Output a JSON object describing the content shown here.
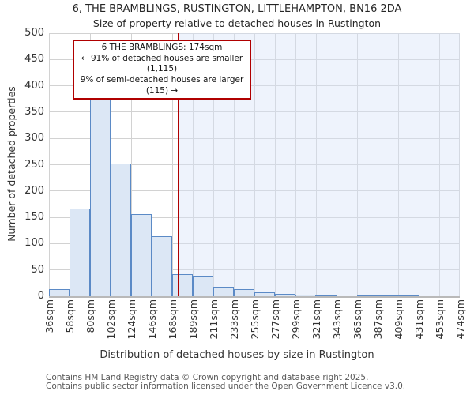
{
  "title": "6, THE BRAMBLINGS, RUSTINGTON, LITTLEHAMPTON, BN16 2DA",
  "subtitle": "Size of property relative to detached houses in Rustington",
  "annotation": {
    "line1": "6 THE BRAMBLINGS: 174sqm",
    "line2": "← 91% of detached houses are smaller (1,115)",
    "line3": "9% of semi-detached houses are larger (115) →"
  },
  "footer": {
    "line1": "Contains HM Land Registry data © Crown copyright and database right 2025.",
    "line2": "Contains public sector information licensed under the Open Government Licence v3.0."
  },
  "colors": {
    "bar_fill": "#dce7f5",
    "bar_border": "#5b8ac6",
    "marker_line": "#b00000",
    "shade": "rgba(214,226,248,0.42)",
    "gridline": "#d2d2d2",
    "annotation_border": "#b00000"
  },
  "chart_data": {
    "type": "bar",
    "title": "6, THE BRAMBLINGS, RUSTINGTON, LITTLEHAMPTON, BN16 2DA",
    "subtitle": "Size of property relative to detached houses in Rustington",
    "xlabel": "Distribution of detached houses by size in Rustington",
    "ylabel": "Number of detached properties",
    "bin_edges_sqm": [
      36,
      58,
      80,
      102,
      124,
      146,
      168,
      189,
      211,
      233,
      255,
      277,
      299,
      321,
      343,
      365,
      387,
      409,
      431,
      453,
      474
    ],
    "x_tick_labels": [
      "36sqm",
      "58sqm",
      "80sqm",
      "102sqm",
      "124sqm",
      "146sqm",
      "168sqm",
      "189sqm",
      "211sqm",
      "233sqm",
      "255sqm",
      "277sqm",
      "299sqm",
      "321sqm",
      "343sqm",
      "365sqm",
      "387sqm",
      "409sqm",
      "431sqm",
      "453sqm",
      "474sqm"
    ],
    "values": [
      13,
      167,
      395,
      252,
      156,
      114,
      42,
      37,
      18,
      13,
      8,
      4,
      3,
      2,
      0,
      2,
      2,
      2,
      0,
      0
    ],
    "yticks": [
      0,
      50,
      100,
      150,
      200,
      250,
      300,
      350,
      400,
      450,
      500
    ],
    "ylim": [
      0,
      500
    ],
    "xlim_sqm": [
      36,
      474
    ],
    "marker_sqm": 174,
    "grid": true,
    "legend": false
  }
}
